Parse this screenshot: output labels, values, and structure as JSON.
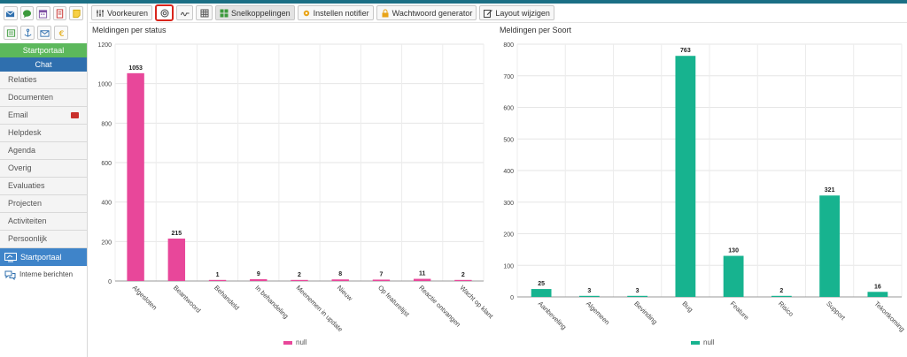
{
  "colors": {
    "status_series": "#e8479a",
    "soort_series": "#17b38f",
    "sidebar_active": "#3f84c9",
    "sidebar_green": "#5cb85c",
    "sidebar_chat": "#2f6fae",
    "highlight_border": "#d9251c"
  },
  "sidebar": {
    "app_icons_row1": [
      "mail-icon",
      "chat-bubble-icon",
      "calendar-icon",
      "document-icon",
      "note-icon"
    ],
    "app_icons_row2": [
      "list-icon",
      "anchor-icon",
      "envelope-icon",
      "euro-icon"
    ],
    "startportaal_button": "Startportaal",
    "chat_button": "Chat",
    "items": [
      {
        "label": "Relaties"
      },
      {
        "label": "Documenten"
      },
      {
        "label": "Email"
      },
      {
        "label": "Helpdesk"
      },
      {
        "label": "Agenda"
      },
      {
        "label": "Overig"
      },
      {
        "label": "Evaluaties"
      },
      {
        "label": "Projecten"
      },
      {
        "label": "Activiteiten"
      },
      {
        "label": "Persoonlijk"
      }
    ],
    "active_item": "Startportaal",
    "interne_berichten": "Interne berichten"
  },
  "toolbar": {
    "voorkeuren": "Voorkeuren",
    "snelkoppelingen": "Snelkoppelingen",
    "instellen_notifier": "Instellen notifier",
    "wachtwoord_generator": "Wachtwoord generator",
    "layout_wijzigen": "Layout wijzigen"
  },
  "chart_data": [
    {
      "type": "bar",
      "title": "Meldingen per status",
      "categories": [
        "Afgesloten",
        "Beantwoord",
        "Behandeld",
        "In behandeling",
        "Meenemen in update",
        "Nieuw",
        "Op featurelijst",
        "Reactie ontvangen",
        "Wacht op klant"
      ],
      "series": [
        {
          "name": "null",
          "values": [
            1053,
            215,
            1,
            9,
            2,
            8,
            7,
            11,
            2
          ]
        }
      ],
      "ylim": [
        0,
        1200
      ],
      "yticks": [
        0,
        200,
        400,
        600,
        800,
        1000,
        1200
      ],
      "grid": true,
      "legend_position": "bottom"
    },
    {
      "type": "bar",
      "title": "Meldingen per Soort",
      "categories": [
        "Aanbeveling",
        "Algemeen",
        "Bevinding",
        "Bug",
        "Feature",
        "Risico",
        "Support",
        "Tekortkoming"
      ],
      "series": [
        {
          "name": "null",
          "values": [
            25,
            3,
            3,
            763,
            130,
            2,
            321,
            16
          ]
        }
      ],
      "ylim": [
        0,
        800
      ],
      "yticks": [
        0,
        100,
        200,
        300,
        400,
        500,
        600,
        700,
        800
      ],
      "grid": true,
      "legend_position": "bottom"
    }
  ]
}
